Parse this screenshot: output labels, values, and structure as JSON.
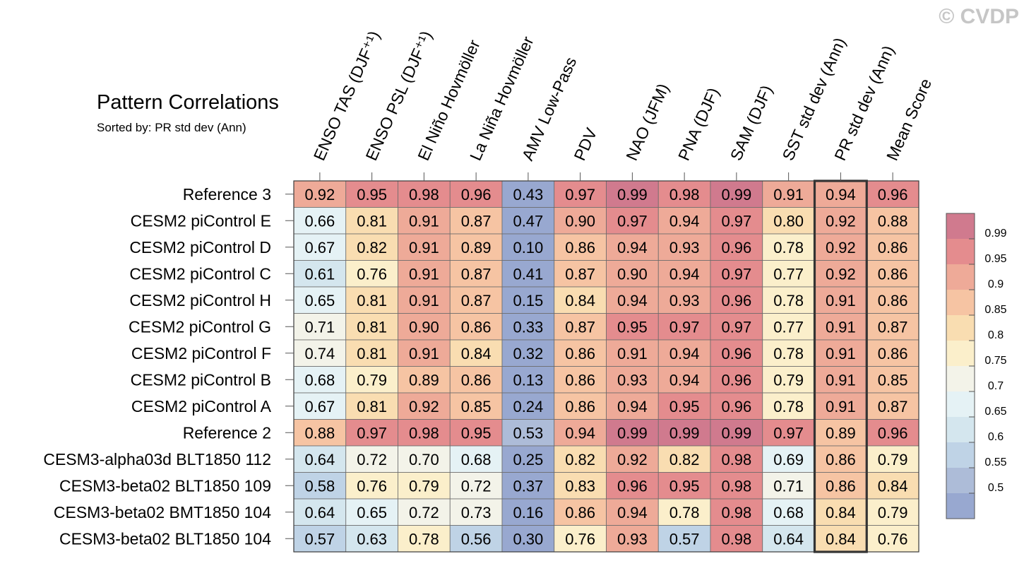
{
  "watermark": "© CVDP",
  "chart_data": {
    "type": "heatmap",
    "title": "Pattern Correlations",
    "subtitle": "Sorted by: PR std dev (Ann)",
    "columns": [
      "ENSO TAS (DJF⁺¹)",
      "ENSO PSL (DJF⁺¹)",
      "El Niño Hovmöller",
      "La Niña Hovmöller",
      "AMV Low-Pass",
      "PDV",
      "NAO (JFM)",
      "PNA (DJF)",
      "SAM (DJF)",
      "SST std dev (Ann)",
      "PR std dev (Ann)",
      "Mean Score"
    ],
    "rows": [
      "Reference 3",
      "CESM2 piControl E",
      "CESM2 piControl D",
      "CESM2 piControl C",
      "CESM2 piControl H",
      "CESM2 piControl G",
      "CESM2 piControl F",
      "CESM2 piControl B",
      "CESM2 piControl A",
      "Reference 2",
      "CESM3-alpha03d BLT1850 112",
      "CESM3-beta02 BLT1850 109",
      "CESM3-beta02 BMT1850 104",
      "CESM3-beta02 BLT1850 104"
    ],
    "values": [
      [
        "0.92",
        "0.95",
        "0.98",
        "0.96",
        "0.43",
        "0.97",
        "0.99",
        "0.98",
        "0.99",
        "0.91",
        "0.94",
        "0.96"
      ],
      [
        "0.66",
        "0.81",
        "0.91",
        "0.87",
        "0.47",
        "0.90",
        "0.97",
        "0.94",
        "0.97",
        "0.80",
        "0.92",
        "0.88"
      ],
      [
        "0.67",
        "0.82",
        "0.91",
        "0.89",
        "0.10",
        "0.86",
        "0.94",
        "0.93",
        "0.96",
        "0.78",
        "0.92",
        "0.86"
      ],
      [
        "0.61",
        "0.76",
        "0.91",
        "0.87",
        "0.41",
        "0.87",
        "0.90",
        "0.94",
        "0.97",
        "0.77",
        "0.92",
        "0.86"
      ],
      [
        "0.65",
        "0.81",
        "0.91",
        "0.87",
        "0.15",
        "0.84",
        "0.94",
        "0.93",
        "0.96",
        "0.78",
        "0.91",
        "0.86"
      ],
      [
        "0.71",
        "0.81",
        "0.90",
        "0.86",
        "0.33",
        "0.87",
        "0.95",
        "0.97",
        "0.97",
        "0.77",
        "0.91",
        "0.87"
      ],
      [
        "0.74",
        "0.81",
        "0.91",
        "0.84",
        "0.32",
        "0.86",
        "0.91",
        "0.94",
        "0.96",
        "0.78",
        "0.91",
        "0.86"
      ],
      [
        "0.68",
        "0.79",
        "0.89",
        "0.86",
        "0.13",
        "0.86",
        "0.93",
        "0.94",
        "0.96",
        "0.79",
        "0.91",
        "0.85"
      ],
      [
        "0.67",
        "0.81",
        "0.92",
        "0.85",
        "0.24",
        "0.86",
        "0.94",
        "0.95",
        "0.96",
        "0.78",
        "0.91",
        "0.87"
      ],
      [
        "0.88",
        "0.97",
        "0.98",
        "0.95",
        "0.53",
        "0.94",
        "0.99",
        "0.99",
        "0.99",
        "0.97",
        "0.89",
        "0.96"
      ],
      [
        "0.64",
        "0.72",
        "0.70",
        "0.68",
        "0.25",
        "0.82",
        "0.92",
        "0.82",
        "0.98",
        "0.69",
        "0.86",
        "0.79"
      ],
      [
        "0.58",
        "0.76",
        "0.79",
        "0.72",
        "0.37",
        "0.83",
        "0.96",
        "0.95",
        "0.98",
        "0.71",
        "0.86",
        "0.84"
      ],
      [
        "0.64",
        "0.65",
        "0.72",
        "0.73",
        "0.16",
        "0.86",
        "0.94",
        "0.78",
        "0.98",
        "0.68",
        "0.84",
        "0.79"
      ],
      [
        "0.57",
        "0.63",
        "0.78",
        "0.56",
        "0.30",
        "0.76",
        "0.93",
        "0.57",
        "0.98",
        "0.64",
        "0.84",
        "0.76"
      ]
    ],
    "highlighted_column": "PR std dev (Ann)",
    "colorbar": {
      "labels": [
        "0.99",
        "0.95",
        "0.9",
        "0.85",
        "0.8",
        "0.75",
        "0.7",
        "0.65",
        "0.6",
        "0.55",
        "0.5"
      ],
      "thresholds": [
        0.5,
        0.55,
        0.6,
        0.65,
        0.7,
        0.75,
        0.8,
        0.85,
        0.9,
        0.95,
        0.99
      ],
      "colors": [
        "#98a8d0",
        "#adbcd8",
        "#bfd3e6",
        "#d4e6ee",
        "#e5f2f5",
        "#f3f3e9",
        "#fbefcb",
        "#f9ddb1",
        "#f6c4a3",
        "#eeaa98",
        "#e48c8e",
        "#d07a8e"
      ]
    }
  }
}
